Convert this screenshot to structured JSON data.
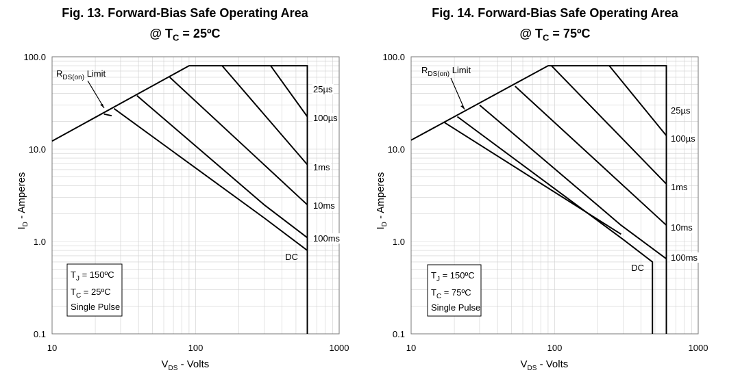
{
  "chart_data": [
    {
      "type": "line",
      "title": "Fig. 13. Forward-Bias Safe Operating Area",
      "subtitle": "@ T_C = 25ºC",
      "subtitle_main": "@ T",
      "subtitle_sub": "C",
      "subtitle_rest": " = 25ºC",
      "xlabel_main": "V",
      "xlabel_sub": "DS",
      "xlabel_rest": " - Volts",
      "ylabel_main": "I",
      "ylabel_sub": "D",
      "ylabel_rest": " - Amperes",
      "x_scale": "log",
      "y_scale": "log",
      "xlim": [
        10,
        1000
      ],
      "ylim": [
        0.1,
        100
      ],
      "x_ticks": [
        "10",
        "100",
        "1000"
      ],
      "y_ticks": [
        "0.1",
        "1.0",
        "10.0",
        "100.0"
      ],
      "grid": true,
      "rds_label_main": "R",
      "rds_label_sub": "DS(on)",
      "rds_label_rest": " Limit",
      "box": {
        "line1_main": "T",
        "line1_sub": "J",
        "line1_rest": " = 150ºC",
        "line2_main": "T",
        "line2_sub": "C",
        "line2_rest": " = 25ºC",
        "line3": "Single Pulse"
      },
      "series": [
        {
          "name": "25µs",
          "points": [
            [
              10,
              12.2
            ],
            [
              90,
              80
            ],
            [
              600,
              80
            ],
            [
              600,
              45
            ]
          ]
        },
        {
          "name": "100µs",
          "points": [
            [
              333,
              80
            ],
            [
              600,
              22.5
            ]
          ]
        },
        {
          "name": "1ms",
          "points": [
            [
              153,
              80
            ],
            [
              600,
              6.8
            ]
          ]
        },
        {
          "name": "10ms",
          "points": [
            [
              66,
              60
            ],
            [
              600,
              2.5
            ]
          ]
        },
        {
          "name": "100ms",
          "points": [
            [
              39,
              38
            ],
            [
              300,
              2.5
            ],
            [
              600,
              1.1
            ]
          ]
        },
        {
          "name": "DC",
          "points": [
            [
              27,
              27.5
            ],
            [
              300,
              1.8
            ],
            [
              600,
              0.8
            ]
          ]
        },
        {
          "name": "",
          "points": [
            [
              23,
              24
            ],
            [
              26,
              23
            ]
          ]
        }
      ],
      "vertical_limit": {
        "x": 600,
        "y_from": 0.1,
        "y_to": 80
      }
    },
    {
      "type": "line",
      "title": "Fig. 14. Forward-Bias Safe Operating Area",
      "subtitle": "@ T_C = 75ºC",
      "subtitle_main": "@ T",
      "subtitle_sub": "C",
      "subtitle_rest": " = 75ºC",
      "xlabel_main": "V",
      "xlabel_sub": "DS",
      "xlabel_rest": " - Volts",
      "ylabel_main": "I",
      "ylabel_sub": "D",
      "ylabel_rest": " - Amperes",
      "x_scale": "log",
      "y_scale": "log",
      "xlim": [
        10,
        1000
      ],
      "ylim": [
        0.1,
        100
      ],
      "x_ticks": [
        "10",
        "100",
        "1000"
      ],
      "y_ticks": [
        "0.1",
        "1.0",
        "10.0",
        "100.0"
      ],
      "grid": true,
      "rds_label_main": "R",
      "rds_label_sub": "DS(on)",
      "rds_label_rest": " Limit",
      "box": {
        "line1_main": "T",
        "line1_sub": "J",
        "line1_rest": " = 150ºC",
        "line2_main": "T",
        "line2_sub": "C",
        "line2_rest": " = 75ºC",
        "line3": "Single Pulse"
      },
      "series": [
        {
          "name": "25µs",
          "points": [
            [
              10,
              12.5
            ],
            [
              90,
              80
            ],
            [
              600,
              80
            ],
            [
              600,
              27
            ]
          ]
        },
        {
          "name": "100µs",
          "points": [
            [
              240,
              80
            ],
            [
              600,
              14
            ]
          ]
        },
        {
          "name": "1ms",
          "points": [
            [
              95,
              80
            ],
            [
              600,
              4.2
            ]
          ]
        },
        {
          "name": "10ms",
          "points": [
            [
              53,
              48
            ],
            [
              600,
              1.5
            ]
          ]
        },
        {
          "name": "100ms",
          "points": [
            [
              30,
              30
            ],
            [
              290,
              1.5
            ],
            [
              600,
              0.65
            ]
          ]
        },
        {
          "name": "DC",
          "points": [
            [
              21,
              22.5
            ],
            [
              300,
              1.05
            ],
            [
              480,
              0.6
            ],
            [
              480,
              0.1
            ]
          ]
        },
        {
          "name": "",
          "points": [
            [
              17,
              19.5
            ],
            [
              290,
              1.2
            ]
          ]
        }
      ],
      "vertical_limit": {
        "x": 600,
        "y_from": 0.1,
        "y_to": 80
      }
    }
  ]
}
